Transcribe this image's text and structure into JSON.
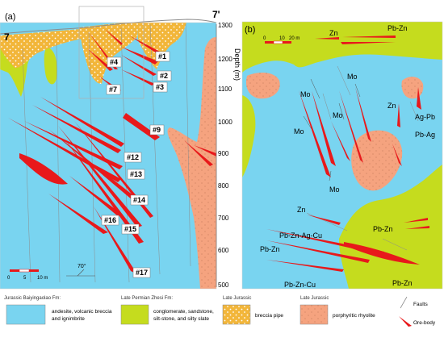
{
  "panel_a": {
    "label": "(a)",
    "section_left": "7",
    "section_right": "7'",
    "depth_axis_title": "Depth (m)",
    "depth_ticks": [
      "1300",
      "1200",
      "1100",
      "1000",
      "900",
      "800",
      "700",
      "600",
      "500"
    ],
    "ore_labels": [
      "#1",
      "#2",
      "#3",
      "#4",
      "#7",
      "#9",
      "#12",
      "#13",
      "#14",
      "#15",
      "#16",
      "#17"
    ],
    "scale": {
      "zero": "0",
      "mid": "5",
      "end": "10 m"
    },
    "dip": "70°"
  },
  "panel_b": {
    "label": "(b)",
    "scale": {
      "zero": "0",
      "mid": "10",
      "end": "20 m"
    },
    "ore_labels": [
      "Pb-Zn",
      "Zn",
      "Mo",
      "Mo",
      "Mo",
      "Mo",
      "Mo",
      "Zn",
      "Ag-Pb",
      "Pb-Ag",
      "Zn",
      "Pb-Zn-Ag-Cu",
      "Pb-Zn",
      "Pb-Zn",
      "Pb-Zn-Cu",
      "Pb-Zn"
    ]
  },
  "legend": [
    {
      "era": "Jurassic  Baiyingaolao Fm:",
      "description": [
        "andesite, volcanic breccia",
        "and ignimbrite"
      ],
      "color": "#79d4f0"
    },
    {
      "era": "Late  Permian Zhesi Fm:",
      "description": [
        "conglomerate, sandstone,",
        "silt-stone, and silty slate"
      ],
      "color": "#c5dc1e"
    },
    {
      "era": "Late Jurassic",
      "description": [
        "breccia pipe"
      ],
      "color": "#f2b63a"
    },
    {
      "era": "Late Jurassic",
      "description": [
        "porphyritic rhyolite"
      ],
      "color": "#f5a37f"
    },
    {
      "era": "",
      "description": [
        "Faults"
      ],
      "color": "#8c8c8c"
    },
    {
      "era": "",
      "description": [
        "Ore-body"
      ],
      "color": "#e8191b"
    }
  ]
}
